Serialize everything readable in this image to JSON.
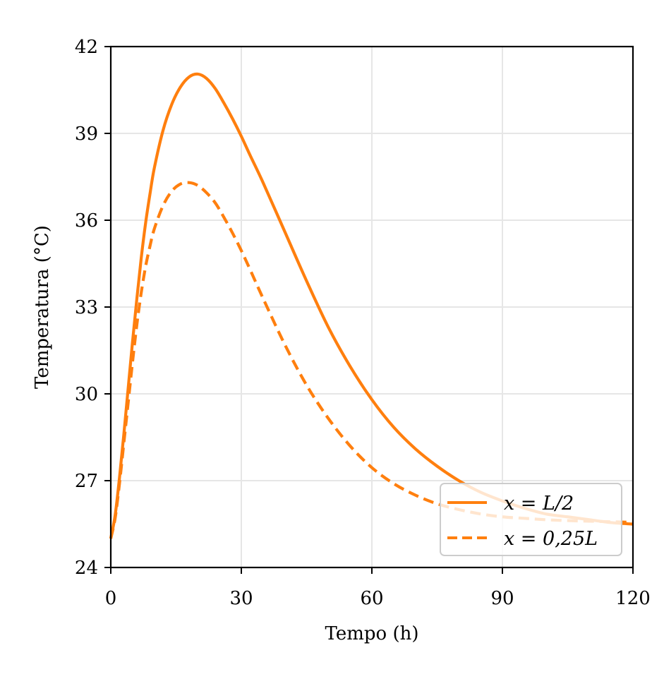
{
  "chart_data": {
    "type": "line",
    "xlabel": "Tempo (h)",
    "ylabel": "Temperatura (°C)",
    "xlim": [
      0,
      120
    ],
    "ylim": [
      24,
      42
    ],
    "x_ticks": [
      "0",
      "30",
      "60",
      "90",
      "120"
    ],
    "y_ticks": [
      "24",
      "27",
      "30",
      "33",
      "36",
      "39",
      "42"
    ],
    "grid": true,
    "legend_position": "lower-right",
    "line_color": "#ff7f0e",
    "series": [
      {
        "name": "x = L/2",
        "style": "solid",
        "x": [
          0,
          1,
          2,
          3,
          4,
          5,
          6,
          7,
          8,
          9,
          10,
          12,
          14,
          16,
          18,
          20,
          22,
          24,
          26,
          28,
          30,
          32,
          35,
          40,
          45,
          50,
          55,
          60,
          65,
          70,
          75,
          80,
          85,
          90,
          95,
          100,
          105,
          110,
          115,
          120
        ],
        "y": [
          25.0,
          25.8,
          27.1,
          28.6,
          30.2,
          31.8,
          33.3,
          34.7,
          35.9,
          36.9,
          37.8,
          39.1,
          40.0,
          40.6,
          40.95,
          41.05,
          40.9,
          40.55,
          40.05,
          39.5,
          38.9,
          38.25,
          37.3,
          35.6,
          33.9,
          32.3,
          30.95,
          29.8,
          28.85,
          28.1,
          27.5,
          27.0,
          26.6,
          26.3,
          26.05,
          25.85,
          25.75,
          25.65,
          25.55,
          25.5
        ]
      },
      {
        "name": "x = 0,25L",
        "style": "dashed",
        "x": [
          0,
          1,
          2,
          3,
          4,
          5,
          6,
          7,
          8,
          9,
          10,
          12,
          14,
          16,
          18,
          20,
          22,
          24,
          26,
          28,
          30,
          32,
          35,
          40,
          45,
          50,
          55,
          60,
          65,
          70,
          75,
          80,
          85,
          90,
          95,
          100,
          105,
          110,
          115,
          120
        ],
        "y": [
          25.0,
          25.7,
          26.9,
          28.3,
          29.7,
          31.1,
          32.4,
          33.5,
          34.4,
          35.1,
          35.7,
          36.5,
          37.0,
          37.25,
          37.3,
          37.2,
          36.95,
          36.6,
          36.1,
          35.55,
          34.95,
          34.3,
          33.3,
          31.7,
          30.3,
          29.15,
          28.2,
          27.45,
          26.9,
          26.5,
          26.2,
          26.0,
          25.85,
          25.75,
          25.7,
          25.65,
          25.62,
          25.6,
          25.58,
          25.56
        ]
      }
    ],
    "legend": [
      {
        "label": "x = L/2",
        "style": "solid"
      },
      {
        "label": "x = 0,25L",
        "style": "dashed"
      }
    ]
  }
}
